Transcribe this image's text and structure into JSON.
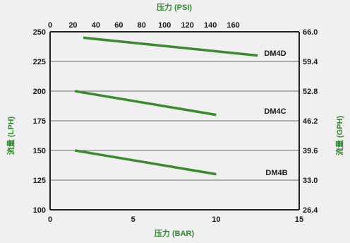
{
  "chart_data": {
    "type": "line",
    "xlabel_bottom": "压力 (BAR)",
    "xlabel_top": "压力 (PSI)",
    "ylabel_left": "流量 (LPH)",
    "ylabel_right": "流量 (GPH)",
    "x_bottom_range": [
      0,
      15
    ],
    "x_bottom_ticks": [
      "0",
      "5",
      "10",
      "15"
    ],
    "x_top_ticks": [
      "0",
      "20",
      "40",
      "60",
      "80",
      "100",
      "120",
      "140",
      "160"
    ],
    "y_left_range": [
      100,
      250
    ],
    "y_left_ticks": [
      "100",
      "125",
      "150",
      "175",
      "200",
      "225",
      "250"
    ],
    "y_right_ticks": [
      "26.4",
      "33.0",
      "39.6",
      "46.2",
      "52.8",
      "59.4",
      "66.0"
    ],
    "grid": true,
    "series": [
      {
        "name": "DM4D",
        "x": [
          2.0,
          12.5
        ],
        "y": [
          245,
          230
        ]
      },
      {
        "name": "DM4C",
        "x": [
          1.5,
          10.0
        ],
        "y": [
          200,
          180
        ]
      },
      {
        "name": "DM4B",
        "x": [
          1.5,
          10.0
        ],
        "y": [
          150,
          130
        ]
      }
    ],
    "colors": {
      "line": "#3a8a2e",
      "axis_title": "#2e8b2e",
      "grid": "#6a6a6a",
      "background": "#f0f0f0"
    }
  }
}
